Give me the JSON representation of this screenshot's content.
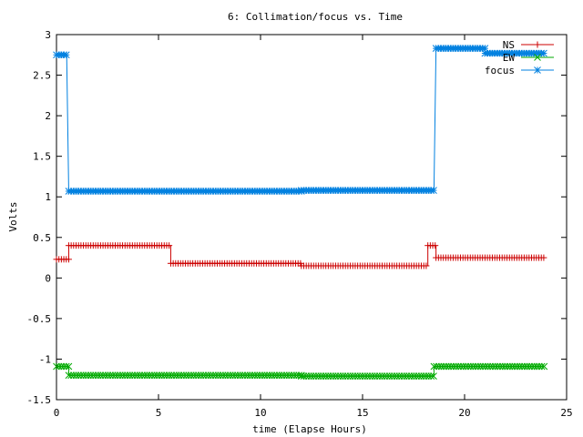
{
  "chart_data": {
    "type": "line",
    "title": "6: Collimation/focus vs. Time",
    "xlabel": "time (Elapse Hours)",
    "ylabel": "Volts",
    "xlim": [
      0,
      25
    ],
    "ylim": [
      -1.5,
      3
    ],
    "xticks": [
      "0",
      "5",
      "10",
      "15",
      "20",
      "25"
    ],
    "yticks": [
      "-1.5",
      "-1",
      "-0.5",
      "0",
      "0.5",
      "1",
      "1.5",
      "2",
      "2.5",
      "3"
    ],
    "grid": false,
    "legend": "top-right",
    "series": [
      {
        "name": "NS",
        "color": "#cc0000",
        "marker": "plus",
        "segments": [
          {
            "x": [
              0.0,
              0.6
            ],
            "y": [
              0.23,
              0.23
            ]
          },
          {
            "x": [
              0.6,
              5.6
            ],
            "y": [
              0.4,
              0.4
            ]
          },
          {
            "x": [
              5.6,
              12.0
            ],
            "y": [
              0.18,
              0.18
            ]
          },
          {
            "x": [
              12.0,
              18.2
            ],
            "y": [
              0.15,
              0.15
            ]
          },
          {
            "x": [
              18.2,
              18.6
            ],
            "y": [
              0.4,
              0.4
            ]
          },
          {
            "x": [
              18.6,
              23.9
            ],
            "y": [
              0.25,
              0.25
            ]
          }
        ]
      },
      {
        "name": "EW",
        "color": "#00aa00",
        "marker": "x",
        "segments": [
          {
            "x": [
              0.0,
              0.6
            ],
            "y": [
              -1.09,
              -1.09
            ]
          },
          {
            "x": [
              0.6,
              12.0
            ],
            "y": [
              -1.2,
              -1.2
            ]
          },
          {
            "x": [
              12.0,
              18.5
            ],
            "y": [
              -1.21,
              -1.21
            ]
          },
          {
            "x": [
              18.5,
              23.9
            ],
            "y": [
              -1.09,
              -1.09
            ]
          }
        ]
      },
      {
        "name": "focus",
        "color": "#0080e0",
        "marker": "star",
        "segments": [
          {
            "x": [
              0.0,
              0.5
            ],
            "y": [
              2.75,
              2.75
            ]
          },
          {
            "x": [
              0.6,
              12.0
            ],
            "y": [
              1.07,
              1.07
            ]
          },
          {
            "x": [
              12.0,
              18.5
            ],
            "y": [
              1.08,
              1.08
            ]
          },
          {
            "x": [
              18.6,
              21.0
            ],
            "y": [
              2.83,
              2.83
            ]
          },
          {
            "x": [
              21.0,
              23.9
            ],
            "y": [
              2.77,
              2.77
            ]
          }
        ]
      }
    ]
  }
}
